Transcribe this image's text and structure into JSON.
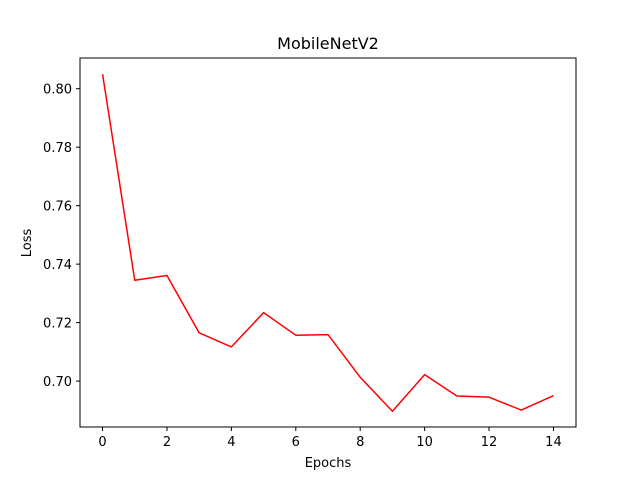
{
  "chart_data": {
    "type": "line",
    "title": "MobileNetV2",
    "xlabel": "Epochs",
    "ylabel": "Loss",
    "xlim": [
      -0.7,
      14.7
    ],
    "ylim": [
      0.6843,
      0.8105
    ],
    "xticks": [
      0,
      2,
      4,
      6,
      8,
      10,
      12,
      14
    ],
    "xtick_labels": [
      "0",
      "2",
      "4",
      "6",
      "8",
      "10",
      "12",
      "14"
    ],
    "yticks": [
      0.7,
      0.72,
      0.74,
      0.76,
      0.78,
      0.8
    ],
    "ytick_labels": [
      "0.70",
      "0.72",
      "0.74",
      "0.76",
      "0.78",
      "0.80"
    ],
    "grid": false,
    "series": [
      {
        "color": "#ff0000",
        "x": [
          0,
          1,
          2,
          3,
          4,
          5,
          6,
          7,
          8,
          9,
          10,
          11,
          12,
          13,
          14
        ],
        "values": [
          0.805,
          0.7345,
          0.7361,
          0.7165,
          0.7117,
          0.7234,
          0.7157,
          0.7159,
          0.7013,
          0.6897,
          0.7022,
          0.6949,
          0.6945,
          0.6901,
          0.695
        ]
      }
    ]
  }
}
